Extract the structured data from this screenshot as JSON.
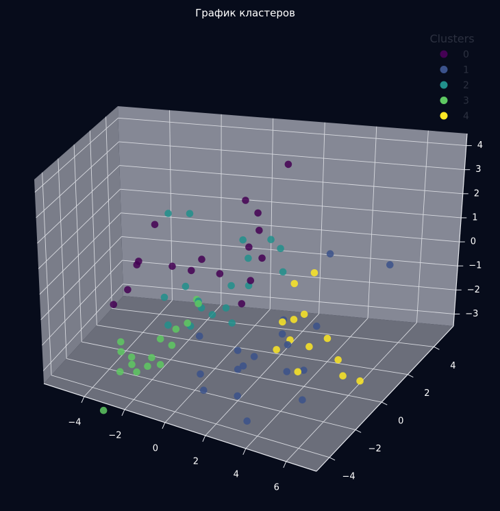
{
  "chart_data": {
    "type": "scatter",
    "projection": "3d",
    "title": "График кластеров",
    "xlabel": "",
    "ylabel": "",
    "zlabel": "",
    "legend": {
      "title": "Clusters",
      "position": "top-right"
    },
    "grid": true,
    "xticks": [
      "−4",
      "−2",
      "0",
      "2",
      "4",
      "6"
    ],
    "yticks": [
      "−4",
      "−2",
      "0",
      "2",
      "4"
    ],
    "zticks": [
      "−3",
      "−2",
      "−1",
      "0",
      "1",
      "2",
      "3",
      "4"
    ],
    "xlim": [
      -6,
      7.5
    ],
    "ylim": [
      -5,
      5.5
    ],
    "zlim": [
      -3.5,
      4.5
    ],
    "series": [
      {
        "name": "0",
        "color": "#440154",
        "points": [
          [
            -3.5,
            -2.5,
            -0.6
          ],
          [
            -2.8,
            0.5,
            1.7
          ],
          [
            -1.2,
            -1.5,
            1.1
          ],
          [
            0.2,
            2.5,
            2.4
          ],
          [
            0.5,
            3,
            1.7
          ],
          [
            1,
            2,
            1.5
          ],
          [
            0.8,
            1.5,
            1
          ],
          [
            -0.8,
            -0.5,
            0.6
          ],
          [
            1.5,
            1.2,
            0.8
          ],
          [
            -2.5,
            -2,
            1.2
          ],
          [
            0,
            0.5,
            0.2
          ],
          [
            1.8,
            2.8,
            4
          ],
          [
            -1,
            1,
            0.4
          ],
          [
            -2.6,
            -3,
            0.4
          ],
          [
            1.2,
            0.8,
            0
          ],
          [
            -2.8,
            -1.5,
            0.8
          ],
          [
            0.5,
            1.5,
            -1.4
          ]
        ]
      },
      {
        "name": "1",
        "color": "#3b528b",
        "points": [
          [
            3,
            0,
            -1.5
          ],
          [
            4,
            -1.5,
            -2.1
          ],
          [
            5,
            -2,
            -2.8
          ],
          [
            2.5,
            -3,
            -2.7
          ],
          [
            3.5,
            -4,
            -3
          ],
          [
            1.2,
            -3.6,
            -2.5
          ],
          [
            0.5,
            -2.5,
            -2.5
          ],
          [
            2,
            -2,
            -2.2
          ],
          [
            1.5,
            -1,
            -2
          ],
          [
            3.5,
            -0.5,
            -1.6
          ],
          [
            2.8,
            0.5,
            -1.2
          ],
          [
            4,
            1,
            -1.5
          ],
          [
            6,
            3,
            0.3
          ],
          [
            2,
            -1.5,
            -2.3
          ],
          [
            4.5,
            -1,
            -2.2
          ],
          [
            2.5,
            -1.5,
            -1.8
          ],
          [
            0,
            -1.5,
            -1.5
          ],
          [
            4,
            2,
            1
          ]
        ]
      },
      {
        "name": "2",
        "color": "#21918c",
        "points": [
          [
            -1.5,
            1,
            2.2
          ],
          [
            -2,
            0,
            2.5
          ],
          [
            0.5,
            1.6,
            1.2
          ],
          [
            1,
            1,
            0.8
          ],
          [
            1.5,
            2,
            1.2
          ],
          [
            2,
            1.8,
            1
          ],
          [
            -1.5,
            0.5,
            -0.6
          ],
          [
            -0.5,
            -0.2,
            -1
          ],
          [
            -0.2,
            0.2,
            -1.4
          ],
          [
            0.5,
            0,
            -0.9
          ],
          [
            1,
            -0.5,
            -1.2
          ],
          [
            0.8,
            1.5,
            -0.6
          ],
          [
            -0.5,
            -0.5,
            -0.6
          ],
          [
            0.5,
            0.5,
            -0.2
          ],
          [
            -1.8,
            -1,
            -0.5
          ],
          [
            2.5,
            1,
            0.5
          ],
          [
            -1.3,
            0.5,
            -2.2
          ],
          [
            -2,
            -0.2,
            -2
          ]
        ]
      },
      {
        "name": "3",
        "color": "#5ec962",
        "points": [
          [
            -3.5,
            -2,
            -3.5
          ],
          [
            -2.5,
            -2.5,
            -3.1
          ],
          [
            -3,
            -3,
            -1.8
          ],
          [
            -2.5,
            -3,
            -2.3
          ],
          [
            -3,
            -3,
            -2.2
          ],
          [
            -3.5,
            -4,
            -4.3
          ],
          [
            -1.5,
            -1,
            -2.4
          ],
          [
            -1.8,
            -1.5,
            -2
          ],
          [
            -1,
            -0.5,
            -1.6
          ],
          [
            -0.5,
            -0.5,
            -0.7
          ],
          [
            -0.8,
            0,
            -0.8
          ],
          [
            -2,
            -2,
            -2.6
          ],
          [
            -1.3,
            -1,
            -1.7
          ],
          [
            -2.5,
            -3,
            -2.6
          ],
          [
            -1.6,
            -2,
            -2.8
          ],
          [
            -2.2,
            -2,
            -3
          ]
        ]
      },
      {
        "name": "4",
        "color": "#fde725",
        "points": [
          [
            3.5,
            0,
            -0.8
          ],
          [
            3,
            1,
            0.1
          ],
          [
            3.6,
            1.5,
            0.4
          ],
          [
            3,
            0,
            -1
          ],
          [
            3,
            -0.5,
            -1.9
          ],
          [
            3.5,
            -0.3,
            -1.5
          ],
          [
            4.5,
            -1.5,
            -2
          ],
          [
            5,
            0,
            -1.3
          ],
          [
            5.5,
            0,
            -2.1
          ],
          [
            6,
            -0.5,
            -2.4
          ],
          [
            6.5,
            0,
            -2.8
          ],
          [
            4.2,
            0,
            -1.8
          ],
          [
            3.7,
            0.5,
            -0.8
          ]
        ]
      }
    ]
  }
}
